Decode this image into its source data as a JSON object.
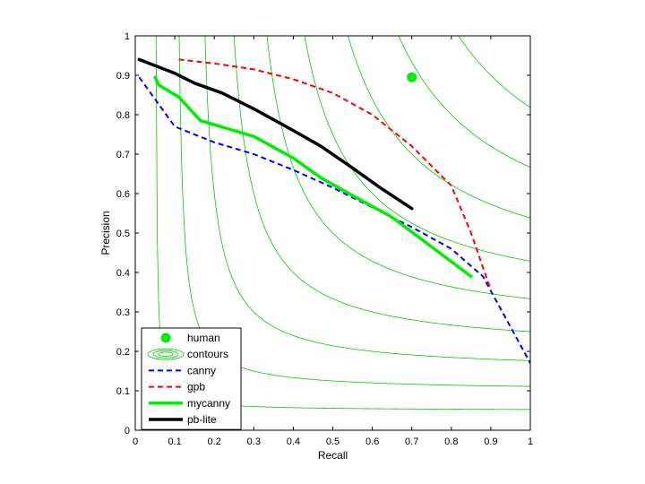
{
  "chart_data": {
    "type": "line",
    "title": "",
    "xlabel": "Recall",
    "ylabel": "Precision",
    "xlim": [
      0,
      1
    ],
    "ylim": [
      0,
      1
    ],
    "xticks": [
      "0",
      "0.1",
      "0.2",
      "0.3",
      "0.4",
      "0.5",
      "0.6",
      "0.7",
      "0.8",
      "0.9",
      "1"
    ],
    "yticks": [
      "0",
      "0.1",
      "0.2",
      "0.3",
      "0.4",
      "0.5",
      "0.6",
      "0.7",
      "0.8",
      "0.9",
      "1"
    ],
    "grid": false,
    "legend_position": "bottom-left",
    "contour_levels": [
      0.1,
      0.2,
      0.3,
      0.4,
      0.5,
      0.6,
      0.7,
      0.8,
      0.9
    ],
    "series": [
      {
        "name": "human",
        "kind": "point",
        "color": "#00ee00",
        "x": [
          0.7
        ],
        "y": [
          0.895
        ]
      },
      {
        "name": "contours",
        "kind": "contour",
        "color": "#00cc00"
      },
      {
        "name": "canny",
        "kind": "line",
        "style": "dashed",
        "color": "#0000ff",
        "width": 2,
        "x": [
          0.01,
          0.1,
          0.2,
          0.3,
          0.4,
          0.5,
          0.6,
          0.7,
          0.8,
          0.88,
          1.0
        ],
        "y": [
          0.895,
          0.77,
          0.73,
          0.7,
          0.66,
          0.615,
          0.565,
          0.515,
          0.46,
          0.39,
          0.17
        ]
      },
      {
        "name": "gpb",
        "kind": "line",
        "style": "dashed",
        "color": "#ff0000",
        "width": 2,
        "x": [
          0.11,
          0.2,
          0.3,
          0.4,
          0.5,
          0.6,
          0.7,
          0.8,
          0.85,
          0.9
        ],
        "y": [
          0.94,
          0.93,
          0.915,
          0.89,
          0.855,
          0.8,
          0.72,
          0.62,
          0.5,
          0.355
        ]
      },
      {
        "name": "mycanny",
        "kind": "line",
        "style": "solid",
        "color": "#00ee00",
        "width": 3.5,
        "x": [
          0.05,
          0.06,
          0.11,
          0.165,
          0.3,
          0.4,
          0.47,
          0.55,
          0.65,
          0.75,
          0.85
        ],
        "y": [
          0.895,
          0.875,
          0.845,
          0.785,
          0.745,
          0.69,
          0.64,
          0.595,
          0.54,
          0.465,
          0.39
        ]
      },
      {
        "name": "pb-lite",
        "kind": "line",
        "style": "solid",
        "color": "#000000",
        "width": 3.5,
        "x": [
          0.01,
          0.1,
          0.15,
          0.22,
          0.3,
          0.4,
          0.47,
          0.55,
          0.62,
          0.7
        ],
        "y": [
          0.94,
          0.905,
          0.88,
          0.855,
          0.815,
          0.76,
          0.72,
          0.665,
          0.615,
          0.562
        ]
      }
    ]
  }
}
